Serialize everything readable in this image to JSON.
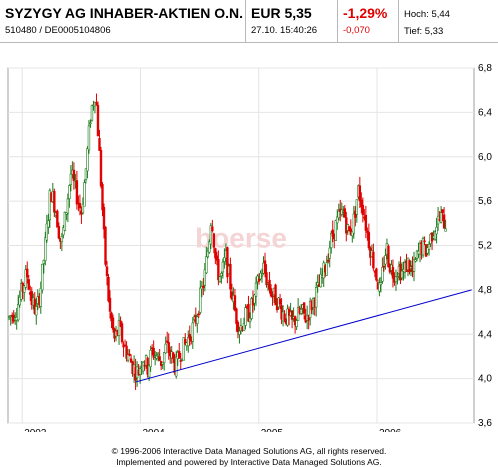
{
  "header": {
    "title": "SYZYGY AG INHABER-AKTIEN O.N.",
    "ids": "510480  /  DE0005104806",
    "price": "EUR 5,35",
    "timestamp": "27.10.  15:40:26",
    "change_pct": "-1,29%",
    "change_abs": "-0,070",
    "high": "Hoch: 5,44",
    "low": "Tief: 5,33"
  },
  "colors": {
    "up_candle": "#1a7a1a",
    "down_candle": "#e00000",
    "trendline": "#0000cc",
    "grid": "#e4e4e4",
    "watermark": "#f4d4d4"
  },
  "watermark": "boerse",
  "footer": {
    "line1": "© 1996-2006 Interactive Data Managed Solutions AG, all rights reserved.",
    "line2": "Implemented and powered by  Interactive Data Managed Solutions AG."
  },
  "chart_data": {
    "type": "candlestick",
    "x_tick_labels": [
      "2003",
      "2004",
      "2005",
      "2006"
    ],
    "x_ticks": [
      2003.0,
      2004.0,
      2005.0,
      2006.0
    ],
    "xlim": [
      2002.88,
      2006.82
    ],
    "ylim": [
      3.6,
      6.8
    ],
    "y_ticks": [
      3.6,
      4.0,
      4.4,
      4.8,
      5.2,
      5.6,
      6.0,
      6.4,
      6.8
    ],
    "y_tick_labels": [
      "3,6",
      "4,0",
      "4,4",
      "4,8",
      "5,2",
      "5,6",
      "6,0",
      "6,4",
      "6,8"
    ],
    "y_axis_side": "right",
    "grid": true,
    "price_path": [
      [
        2002.89,
        4.55
      ],
      [
        2002.95,
        4.62
      ],
      [
        2003.0,
        4.8
      ],
      [
        2003.04,
        4.95
      ],
      [
        2003.08,
        4.7
      ],
      [
        2003.12,
        4.6
      ],
      [
        2003.16,
        4.85
      ],
      [
        2003.2,
        5.25
      ],
      [
        2003.24,
        5.7
      ],
      [
        2003.28,
        5.55
      ],
      [
        2003.33,
        5.2
      ],
      [
        2003.37,
        5.5
      ],
      [
        2003.41,
        5.85
      ],
      [
        2003.45,
        5.7
      ],
      [
        2003.5,
        5.5
      ],
      [
        2003.54,
        5.9
      ],
      [
        2003.58,
        6.4
      ],
      [
        2003.62,
        6.6
      ],
      [
        2003.66,
        5.9
      ],
      [
        2003.7,
        5.1
      ],
      [
        2003.74,
        4.6
      ],
      [
        2003.78,
        4.35
      ],
      [
        2003.82,
        4.45
      ],
      [
        2003.86,
        4.3
      ],
      [
        2003.9,
        4.2
      ],
      [
        2003.94,
        4.1
      ],
      [
        2003.98,
        4.05
      ],
      [
        2004.02,
        4.2
      ],
      [
        2004.06,
        4.1
      ],
      [
        2004.1,
        4.25
      ],
      [
        2004.14,
        4.2
      ],
      [
        2004.18,
        4.15
      ],
      [
        2004.22,
        4.3
      ],
      [
        2004.26,
        4.2
      ],
      [
        2004.3,
        4.1
      ],
      [
        2004.34,
        4.25
      ],
      [
        2004.38,
        4.3
      ],
      [
        2004.42,
        4.4
      ],
      [
        2004.46,
        4.5
      ],
      [
        2004.5,
        4.7
      ],
      [
        2004.54,
        4.9
      ],
      [
        2004.58,
        5.25
      ],
      [
        2004.6,
        5.5
      ],
      [
        2004.64,
        5.0
      ],
      [
        2004.68,
        4.9
      ],
      [
        2004.72,
        5.1
      ],
      [
        2004.76,
        4.85
      ],
      [
        2004.8,
        4.6
      ],
      [
        2004.84,
        4.45
      ],
      [
        2004.88,
        4.55
      ],
      [
        2004.92,
        4.6
      ],
      [
        2004.96,
        4.7
      ],
      [
        2005.0,
        4.9
      ],
      [
        2005.04,
        5.0
      ],
      [
        2005.08,
        4.85
      ],
      [
        2005.12,
        4.75
      ],
      [
        2005.16,
        4.7
      ],
      [
        2005.2,
        4.6
      ],
      [
        2005.24,
        4.55
      ],
      [
        2005.28,
        4.5
      ],
      [
        2005.32,
        4.55
      ],
      [
        2005.36,
        4.6
      ],
      [
        2005.4,
        4.55
      ],
      [
        2005.44,
        4.65
      ],
      [
        2005.48,
        4.75
      ],
      [
        2005.52,
        4.85
      ],
      [
        2005.56,
        5.0
      ],
      [
        2005.6,
        5.2
      ],
      [
        2005.64,
        5.35
      ],
      [
        2005.68,
        5.45
      ],
      [
        2005.72,
        5.5
      ],
      [
        2005.76,
        5.3
      ],
      [
        2005.8,
        5.4
      ],
      [
        2005.84,
        5.7
      ],
      [
        2005.88,
        5.55
      ],
      [
        2005.92,
        5.3
      ],
      [
        2005.96,
        5.1
      ],
      [
        2006.0,
        4.9
      ],
      [
        2006.03,
        4.75
      ],
      [
        2006.05,
        5.0
      ],
      [
        2006.08,
        5.2
      ],
      [
        2006.1,
        5.05
      ],
      [
        2006.14,
        4.95
      ],
      [
        2006.18,
        5.0
      ],
      [
        2006.22,
        4.95
      ],
      [
        2006.26,
        5.05
      ],
      [
        2006.3,
        4.95
      ],
      [
        2006.34,
        5.1
      ],
      [
        2006.38,
        5.2
      ],
      [
        2006.42,
        5.15
      ],
      [
        2006.46,
        5.3
      ],
      [
        2006.5,
        5.4
      ],
      [
        2006.54,
        5.45
      ],
      [
        2006.58,
        5.4
      ]
    ],
    "trendline": [
      [
        2003.96,
        3.97
      ],
      [
        2006.8,
        4.8
      ]
    ]
  }
}
